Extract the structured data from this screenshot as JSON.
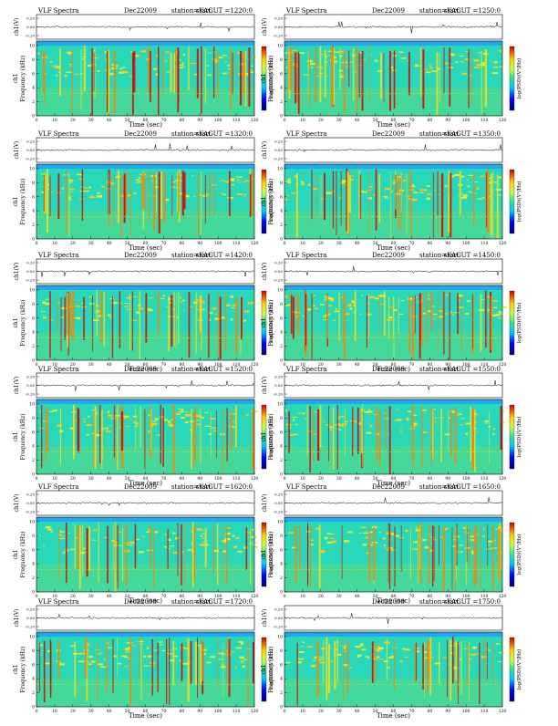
{
  "chart_data": [
    {
      "type": "heatmap",
      "title": "VLF Spectra",
      "date": "Dec22009",
      "station": "station=KAG",
      "start_ut": "start UT =1220:0",
      "top_ylabel": "ch1(V)",
      "top_yticks": [
        "0.20",
        "0.00",
        "-0.20"
      ],
      "ylabel_line1": "ch1",
      "ylabel_line2": "Frequency (kHz)",
      "yticks": [
        "0",
        "2",
        "4",
        "6",
        "8",
        "10"
      ],
      "xlabel": "Time (sec)",
      "xticks": [
        "0",
        "10",
        "20",
        "30",
        "40",
        "50",
        "60",
        "70",
        "80",
        "90",
        "100",
        "110",
        "120"
      ],
      "xlim": [
        0,
        120
      ],
      "ylim": [
        0,
        10
      ],
      "colorbar_label": "log(PSD)(V²/Hz)"
    },
    {
      "type": "heatmap",
      "title": "VLF Spectra",
      "date": "Dec22009",
      "station": "station=KAG",
      "start_ut": "start UT =1250:0",
      "top_ylabel": "ch1(V)",
      "top_yticks": [
        "0.20",
        "0.00",
        "-0.20"
      ],
      "ylabel_line1": "ch1",
      "ylabel_line2": "Frequency (kHz)",
      "yticks": [
        "0",
        "2",
        "4",
        "6",
        "8",
        "10"
      ],
      "xlabel": "Time (sec)",
      "xticks": [
        "0",
        "10",
        "20",
        "30",
        "40",
        "50",
        "60",
        "70",
        "80",
        "90",
        "100",
        "110",
        "120"
      ],
      "xlim": [
        0,
        120
      ],
      "ylim": [
        0,
        10
      ],
      "colorbar_label": "log(PSD)(V²/Hz)"
    },
    {
      "type": "heatmap",
      "title": "VLF Spectra",
      "date": "Dec22009",
      "station": "station=KAG",
      "start_ut": "start UT =1320:0",
      "top_ylabel": "ch1(V)",
      "top_yticks": [
        "0.20",
        "0.00",
        "-0.20"
      ],
      "ylabel_line1": "ch1",
      "ylabel_line2": "Frequency (kHz)",
      "yticks": [
        "0",
        "2",
        "4",
        "6",
        "8",
        "10"
      ],
      "xlabel": "Time (sec)",
      "xticks": [
        "0",
        "10",
        "20",
        "30",
        "40",
        "50",
        "60",
        "70",
        "80",
        "90",
        "100",
        "110",
        "120"
      ],
      "xlim": [
        0,
        120
      ],
      "ylim": [
        0,
        10
      ],
      "colorbar_label": "log(PSD)(V²/Hz)"
    },
    {
      "type": "heatmap",
      "title": "VLF Spectra",
      "date": "Dec22009",
      "station": "station=KAG",
      "start_ut": "start UT =1350:0",
      "top_ylabel": "ch1(V)",
      "top_yticks": [
        "0.20",
        "0.00",
        "-0.20"
      ],
      "ylabel_line1": "ch1",
      "ylabel_line2": "Frequency (kHz)",
      "yticks": [
        "0",
        "2",
        "4",
        "6",
        "8",
        "10"
      ],
      "xlabel": "Time (sec)",
      "xticks": [
        "0",
        "10",
        "20",
        "30",
        "40",
        "50",
        "60",
        "70",
        "80",
        "90",
        "100",
        "110",
        "120"
      ],
      "xlim": [
        0,
        120
      ],
      "ylim": [
        0,
        10
      ],
      "colorbar_label": "log(PSD)(V²/Hz)"
    },
    {
      "type": "heatmap",
      "title": "VLF Spectra",
      "date": "Dec22009",
      "station": "station=KAG",
      "start_ut": "start UT =1420:0",
      "top_ylabel": "ch1(V)",
      "top_yticks": [
        "0.20",
        "0.00",
        "-0.20"
      ],
      "ylabel_line1": "ch1",
      "ylabel_line2": "Frequency (kHz)",
      "yticks": [
        "0",
        "2",
        "4",
        "6",
        "8",
        "10"
      ],
      "xlabel": "Time (sec)",
      "xticks": [
        "0",
        "10",
        "20",
        "30",
        "40",
        "50",
        "60",
        "70",
        "80",
        "90",
        "100",
        "110",
        "120"
      ],
      "xlim": [
        0,
        120
      ],
      "ylim": [
        0,
        10
      ],
      "colorbar_label": "log(PSD)(V²/Hz)"
    },
    {
      "type": "heatmap",
      "title": "VLF Spectra",
      "date": "Dec22009",
      "station": "station=KAG",
      "start_ut": "start UT =1450:0",
      "top_ylabel": "ch1(V)",
      "top_yticks": [
        "0.20",
        "0.00",
        "-0.20"
      ],
      "ylabel_line1": "ch1",
      "ylabel_line2": "Frequency (kHz)",
      "yticks": [
        "0",
        "2",
        "4",
        "6",
        "8",
        "10"
      ],
      "xlabel": "Time (sec)",
      "xticks": [
        "0",
        "10",
        "20",
        "30",
        "40",
        "50",
        "60",
        "70",
        "80",
        "90",
        "100",
        "110",
        "120"
      ],
      "xlim": [
        0,
        120
      ],
      "ylim": [
        0,
        10
      ],
      "colorbar_label": "log(PSD)(V²/Hz)"
    },
    {
      "type": "heatmap",
      "title": "VLF Spectra",
      "date": "Dec22009",
      "station": "station=KAG",
      "start_ut": "start UT =1520:0",
      "top_ylabel": "ch1(V)",
      "top_yticks": [
        "0.20",
        "0.00",
        "-0.20"
      ],
      "ylabel_line1": "ch1",
      "ylabel_line2": "Frequency (kHz)",
      "yticks": [
        "0",
        "2",
        "4",
        "6",
        "8",
        "10"
      ],
      "xlabel": "Time (sec)",
      "xticks": [
        "0",
        "10",
        "20",
        "30",
        "40",
        "50",
        "60",
        "70",
        "80",
        "90",
        "100",
        "110",
        "120"
      ],
      "xlim": [
        0,
        120
      ],
      "ylim": [
        0,
        10
      ],
      "colorbar_label": "log(PSD)(V²/Hz)"
    },
    {
      "type": "heatmap",
      "title": "VLF Spectra",
      "date": "Dec22009",
      "station": "station=KAG",
      "start_ut": "start UT =1550:0",
      "top_ylabel": "ch1(V)",
      "top_yticks": [
        "0.20",
        "0.00",
        "-0.20"
      ],
      "ylabel_line1": "ch1",
      "ylabel_line2": "Frequency (kHz)",
      "yticks": [
        "0",
        "2",
        "4",
        "6",
        "8",
        "10"
      ],
      "xlabel": "Time (sec)",
      "xticks": [
        "0",
        "10",
        "20",
        "30",
        "40",
        "50",
        "60",
        "70",
        "80",
        "90",
        "100",
        "110",
        "120"
      ],
      "xlim": [
        0,
        120
      ],
      "ylim": [
        0,
        10
      ],
      "colorbar_label": "log(PSD)(V²/Hz)"
    },
    {
      "type": "heatmap",
      "title": "VLF Spectra",
      "date": "Dec22009",
      "station": "station=KAG",
      "start_ut": "start UT =1620:0",
      "top_ylabel": "ch1(V)",
      "top_yticks": [
        "0.20",
        "0.00",
        "-0.20"
      ],
      "ylabel_line1": "ch1",
      "ylabel_line2": "Frequency (kHz)",
      "yticks": [
        "0",
        "2",
        "4",
        "6",
        "8",
        "10"
      ],
      "xlabel": "Time (sec)",
      "xticks": [
        "0",
        "10",
        "20",
        "30",
        "40",
        "50",
        "60",
        "70",
        "80",
        "90",
        "100",
        "110",
        "120"
      ],
      "xlim": [
        0,
        120
      ],
      "ylim": [
        0,
        10
      ],
      "colorbar_label": "log(PSD)(V²/Hz)"
    },
    {
      "type": "heatmap",
      "title": "VLF Spectra",
      "date": "Dec22009",
      "station": "station=KAG",
      "start_ut": "start UT =1650:0",
      "top_ylabel": "ch1(V)",
      "top_yticks": [
        "0.20",
        "0.00",
        "-0.20"
      ],
      "ylabel_line1": "ch1",
      "ylabel_line2": "Frequency (kHz)",
      "yticks": [
        "0",
        "2",
        "4",
        "6",
        "8",
        "10"
      ],
      "xlabel": "Time (sec)",
      "xticks": [
        "0",
        "10",
        "20",
        "30",
        "40",
        "50",
        "60",
        "70",
        "80",
        "90",
        "100",
        "110",
        "120"
      ],
      "xlim": [
        0,
        120
      ],
      "ylim": [
        0,
        10
      ],
      "colorbar_label": "log(PSD)(V²/Hz)"
    },
    {
      "type": "heatmap",
      "title": "VLF Spectra",
      "date": "Dec22009",
      "station": "station=KAG",
      "start_ut": "start UT =1720:0",
      "top_ylabel": "ch1(V)",
      "top_yticks": [
        "0.20",
        "0.00",
        "-0.20"
      ],
      "ylabel_line1": "ch1",
      "ylabel_line2": "Frequency (kHz)",
      "yticks": [
        "0",
        "2",
        "4",
        "6",
        "8",
        "10"
      ],
      "xlabel": "Time (sec)",
      "xticks": [
        "0",
        "10",
        "20",
        "30",
        "40",
        "50",
        "60",
        "70",
        "80",
        "90",
        "100",
        "110",
        "120"
      ],
      "xlim": [
        0,
        120
      ],
      "ylim": [
        0,
        10
      ],
      "colorbar_label": "log(PSD)(V²/Hz)"
    },
    {
      "type": "heatmap",
      "title": "",
      "date": "Dec22009",
      "station": "station=KAG",
      "start_ut": "start UT =1750:0",
      "top_ylabel": "ch1(V)",
      "top_yticks": [
        "0.20",
        "0.00",
        "-0.20"
      ],
      "ylabel_line1": "ch1",
      "ylabel_line2": "Frequency (kHz)",
      "yticks": [
        "0",
        "2",
        "4",
        "6",
        "8",
        "10"
      ],
      "xlabel": "Time (sec)",
      "xticks": [
        "0",
        "10",
        "20",
        "30",
        "40",
        "50",
        "60",
        "70",
        "80",
        "90",
        "100",
        "110",
        "120"
      ],
      "xlim": [
        0,
        120
      ],
      "ylim": [
        0,
        10
      ],
      "colorbar_label": "log(PSD)(V²/Hz)"
    }
  ]
}
